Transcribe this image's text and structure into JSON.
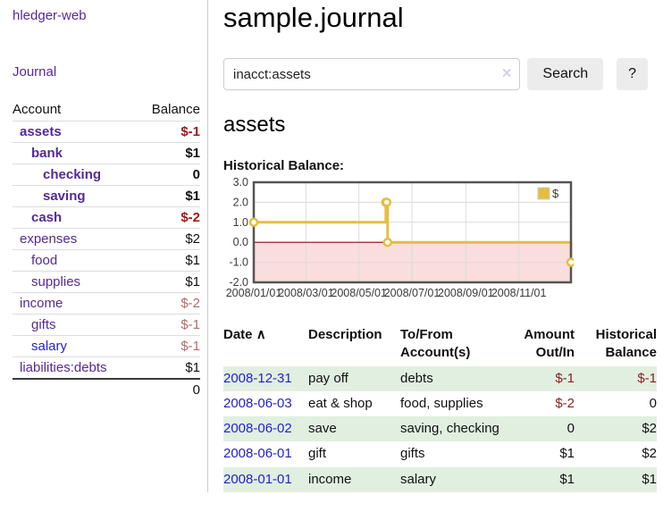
{
  "sidebar": {
    "brand": "hledger-web",
    "journal_link": "Journal",
    "accounts_table": {
      "header_account": "Account",
      "header_balance": "Balance",
      "rows": [
        {
          "name": "assets",
          "balance": "$-1"
        },
        {
          "name": "bank",
          "balance": "$1"
        },
        {
          "name": "checking",
          "balance": "0"
        },
        {
          "name": "saving",
          "balance": "$1"
        },
        {
          "name": "cash",
          "balance": "$-2"
        },
        {
          "name": "expenses",
          "balance": "$2"
        },
        {
          "name": "food",
          "balance": "$1"
        },
        {
          "name": "supplies",
          "balance": "$1"
        },
        {
          "name": "income",
          "balance": "$-2"
        },
        {
          "name": "gifts",
          "balance": "$-1"
        },
        {
          "name": "salary",
          "balance": "$-1"
        },
        {
          "name": "liabilities:debts",
          "balance": "$1"
        }
      ],
      "total": "0"
    }
  },
  "header": {
    "title": "sample.journal"
  },
  "search": {
    "query": "inacct:assets",
    "clear_icon": "✕",
    "search_button": "Search",
    "help_button": "?"
  },
  "account_page": {
    "title": "assets",
    "chart_label": "Historical Balance:"
  },
  "chart_data": {
    "type": "line",
    "step": true,
    "title": "Historical Balance:",
    "xlabel": "",
    "ylabel": "",
    "ylim": [
      -2,
      3
    ],
    "yticks": [
      3.0,
      2.0,
      1.0,
      0.0,
      -1.0,
      -2.0
    ],
    "xtick_labels": [
      "2008/01/01",
      "2008/03/01",
      "2008/05/01",
      "2008/07/01",
      "2008/09/01",
      "2008/11/01"
    ],
    "xrange": [
      "2008-01-01",
      "2008-12-31"
    ],
    "grid": true,
    "legend_position": "top-right",
    "series": [
      {
        "name": "$",
        "color": "#e6bd3f",
        "points": [
          [
            "2008-01-01",
            1
          ],
          [
            "2008-06-01",
            2
          ],
          [
            "2008-06-02",
            2
          ],
          [
            "2008-06-03",
            0
          ],
          [
            "2008-12-31",
            -1
          ]
        ]
      }
    ],
    "colors": {
      "border": "#545454",
      "gridline": "#dcdcdc",
      "zero_line": "#8b1111",
      "negative_region_fill": "#fadddd",
      "tick_text": "#3a3a3a",
      "marker_fill": "#ffffff"
    }
  },
  "register": {
    "headers": {
      "date": "Date",
      "sort_arrow": "∧",
      "description": "Description",
      "accounts": "To/From Account(s)",
      "amount": "Amount Out/In",
      "balance": "Historical Balance"
    },
    "rows": [
      {
        "date": "2008-12-31",
        "description": "pay off",
        "accounts": "debts",
        "amount": "$-1",
        "balance": "$-1"
      },
      {
        "date": "2008-06-03",
        "description": "eat & shop",
        "accounts": "food, supplies",
        "amount": "$-2",
        "balance": "0"
      },
      {
        "date": "2008-06-02",
        "description": "save",
        "accounts": "saving, checking",
        "amount": "0",
        "balance": "$2"
      },
      {
        "date": "2008-06-01",
        "description": "gift",
        "accounts": "gifts",
        "amount": "$1",
        "balance": "$2"
      },
      {
        "date": "2008-01-01",
        "description": "income",
        "accounts": "salary",
        "amount": "$1",
        "balance": "$1"
      }
    ]
  },
  "colors": {
    "link_purple": "#552a97",
    "link_blue": "#2222cc",
    "negative_strong": "#a01818",
    "negative_soft": "#b36b6b",
    "row_green": "#e1efe1"
  }
}
